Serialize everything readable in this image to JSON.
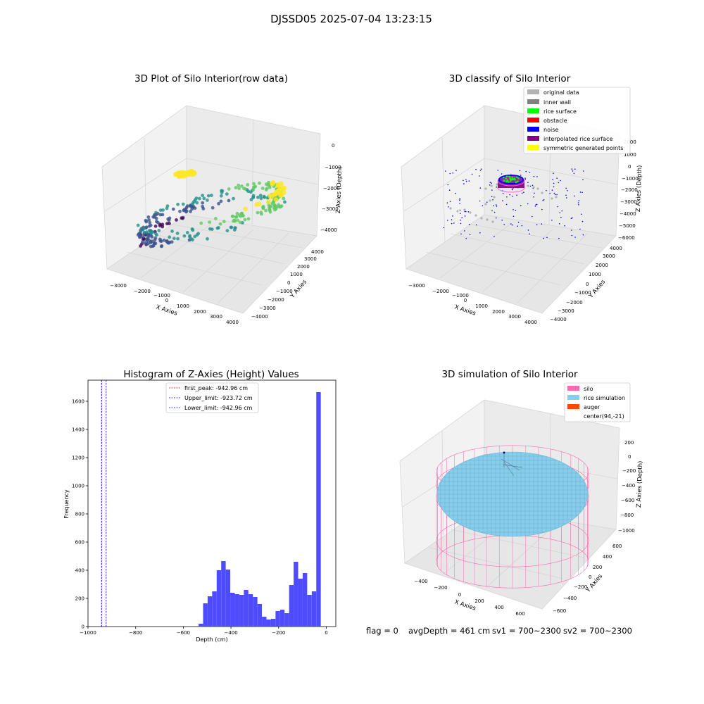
{
  "suptitle": "DJSSD05 2025-07-04 13:23:15",
  "colors": {
    "viridis": [
      "#440154",
      "#3b528b",
      "#21918c",
      "#5ec962",
      "#fde725"
    ],
    "original": "#b3b3b3",
    "inner_wall": "#808080",
    "rice_surface": "#00ff00",
    "obstacle": "#ff0000",
    "noise": "#0000ff",
    "interpolated": "#800080",
    "symmetric": "#ffff00",
    "hist_bar": "#4d4dff",
    "silo": "#ff69b4",
    "rice_sim": "#87ceeb",
    "auger": "#ff4500"
  },
  "chart_data": [
    {
      "type": "scatter3d",
      "title": "3D Plot of Silo Interior(row data)",
      "xlabel": "X Axies",
      "ylabel": "Y Axies",
      "zlabel": "Z Axies (Depth)",
      "x_ticks": [
        "−3000",
        "−2000",
        "−1000",
        "0",
        "1000",
        "2000",
        "3000",
        "4000"
      ],
      "y_ticks": [
        "−4000",
        "−3000",
        "−2000",
        "−1000",
        "0",
        "1000",
        "2000",
        "3000",
        "4000"
      ],
      "z_ticks": [
        "0",
        "−1000",
        "−2000",
        "−3000",
        "−4000"
      ],
      "ring_radius": 2800,
      "z_range": [
        -4400,
        0
      ]
    },
    {
      "type": "scatter3d",
      "title": "3D classify of Silo Interior",
      "xlabel": "X Axies",
      "ylabel": "Y Axies",
      "zlabel": "Z Axies (Depth)",
      "x_ticks": [
        "−3000",
        "−2000",
        "−1000",
        "0",
        "1000",
        "2000",
        "3000",
        "4000"
      ],
      "y_ticks": [
        "−4000",
        "−3000",
        "−2000",
        "−1000",
        "0",
        "1000",
        "2000",
        "3000",
        "4000"
      ],
      "z_ticks": [
        "2000",
        "1000",
        "0",
        "−1000",
        "−2000",
        "−3000",
        "−4000",
        "−5000",
        "−6000"
      ],
      "legend": [
        "original data",
        "inner wall",
        "rice surface",
        "obstacle",
        "noise",
        "interpolated rice surface",
        "symmetric generated points"
      ]
    },
    {
      "type": "bar",
      "title": "Histogram of Z-Axies (Height) Values",
      "xlabel": "Depth (cm)",
      "ylabel": "Frequency",
      "xlim": [
        -1000,
        40
      ],
      "ylim": [
        0,
        1750
      ],
      "x_ticks": [
        -1000,
        -800,
        -600,
        -400,
        -200,
        0
      ],
      "x_tick_labels": [
        "−1000",
        "−800",
        "−600",
        "−400",
        "−200",
        "0"
      ],
      "y_ticks": [
        0,
        200,
        400,
        600,
        800,
        1000,
        1200,
        1400,
        1600
      ],
      "bin_width": 18.9,
      "bin_starts": [
        -536,
        -517,
        -498,
        -479,
        -460,
        -441,
        -422,
        -403,
        -384,
        -365,
        -346,
        -327,
        -308,
        -289,
        -270,
        -251,
        -232,
        -213,
        -194,
        -175,
        -156,
        -137,
        -118,
        -99,
        -80,
        -61,
        -42,
        -23
      ],
      "values": [
        20,
        165,
        215,
        250,
        400,
        465,
        405,
        240,
        230,
        225,
        260,
        230,
        210,
        160,
        70,
        50,
        55,
        110,
        120,
        95,
        295,
        460,
        340,
        380,
        225,
        250,
        1665,
        0
      ],
      "vlines": [
        {
          "label": "first_peak: -942.96 cm",
          "x": -942.96,
          "color": "#ff0000"
        },
        {
          "label": "Upper_limit: -923.72 cm",
          "x": -923.72,
          "color": "#0000aa"
        },
        {
          "label": "Lower_limit: -942.96 cm",
          "x": -942.96,
          "color": "#0000ff"
        }
      ]
    },
    {
      "type": "surface3d",
      "title": "3D simulation of Silo Interior",
      "xlabel": "X Axies",
      "ylabel": "Y Axies",
      "zlabel": "Z Axies (Depth)",
      "x_ticks": [
        "−400",
        "−200",
        "0",
        "200",
        "400",
        "600"
      ],
      "y_ticks": [
        "−600",
        "−400",
        "−200",
        "0",
        "200",
        "400",
        "600"
      ],
      "z_ticks": [
        "200",
        "0",
        "−200",
        "−400",
        "−600",
        "−800",
        "−1000"
      ],
      "legend": [
        "silo",
        "rice simulation",
        "auger",
        "center(94,-21)"
      ]
    }
  ],
  "status": {
    "flag": "flag = 0",
    "avg_depth": "avgDepth = 461 cm",
    "sv1": "sv1 = 700~2300",
    "sv2": "sv2 = 700~2300"
  }
}
